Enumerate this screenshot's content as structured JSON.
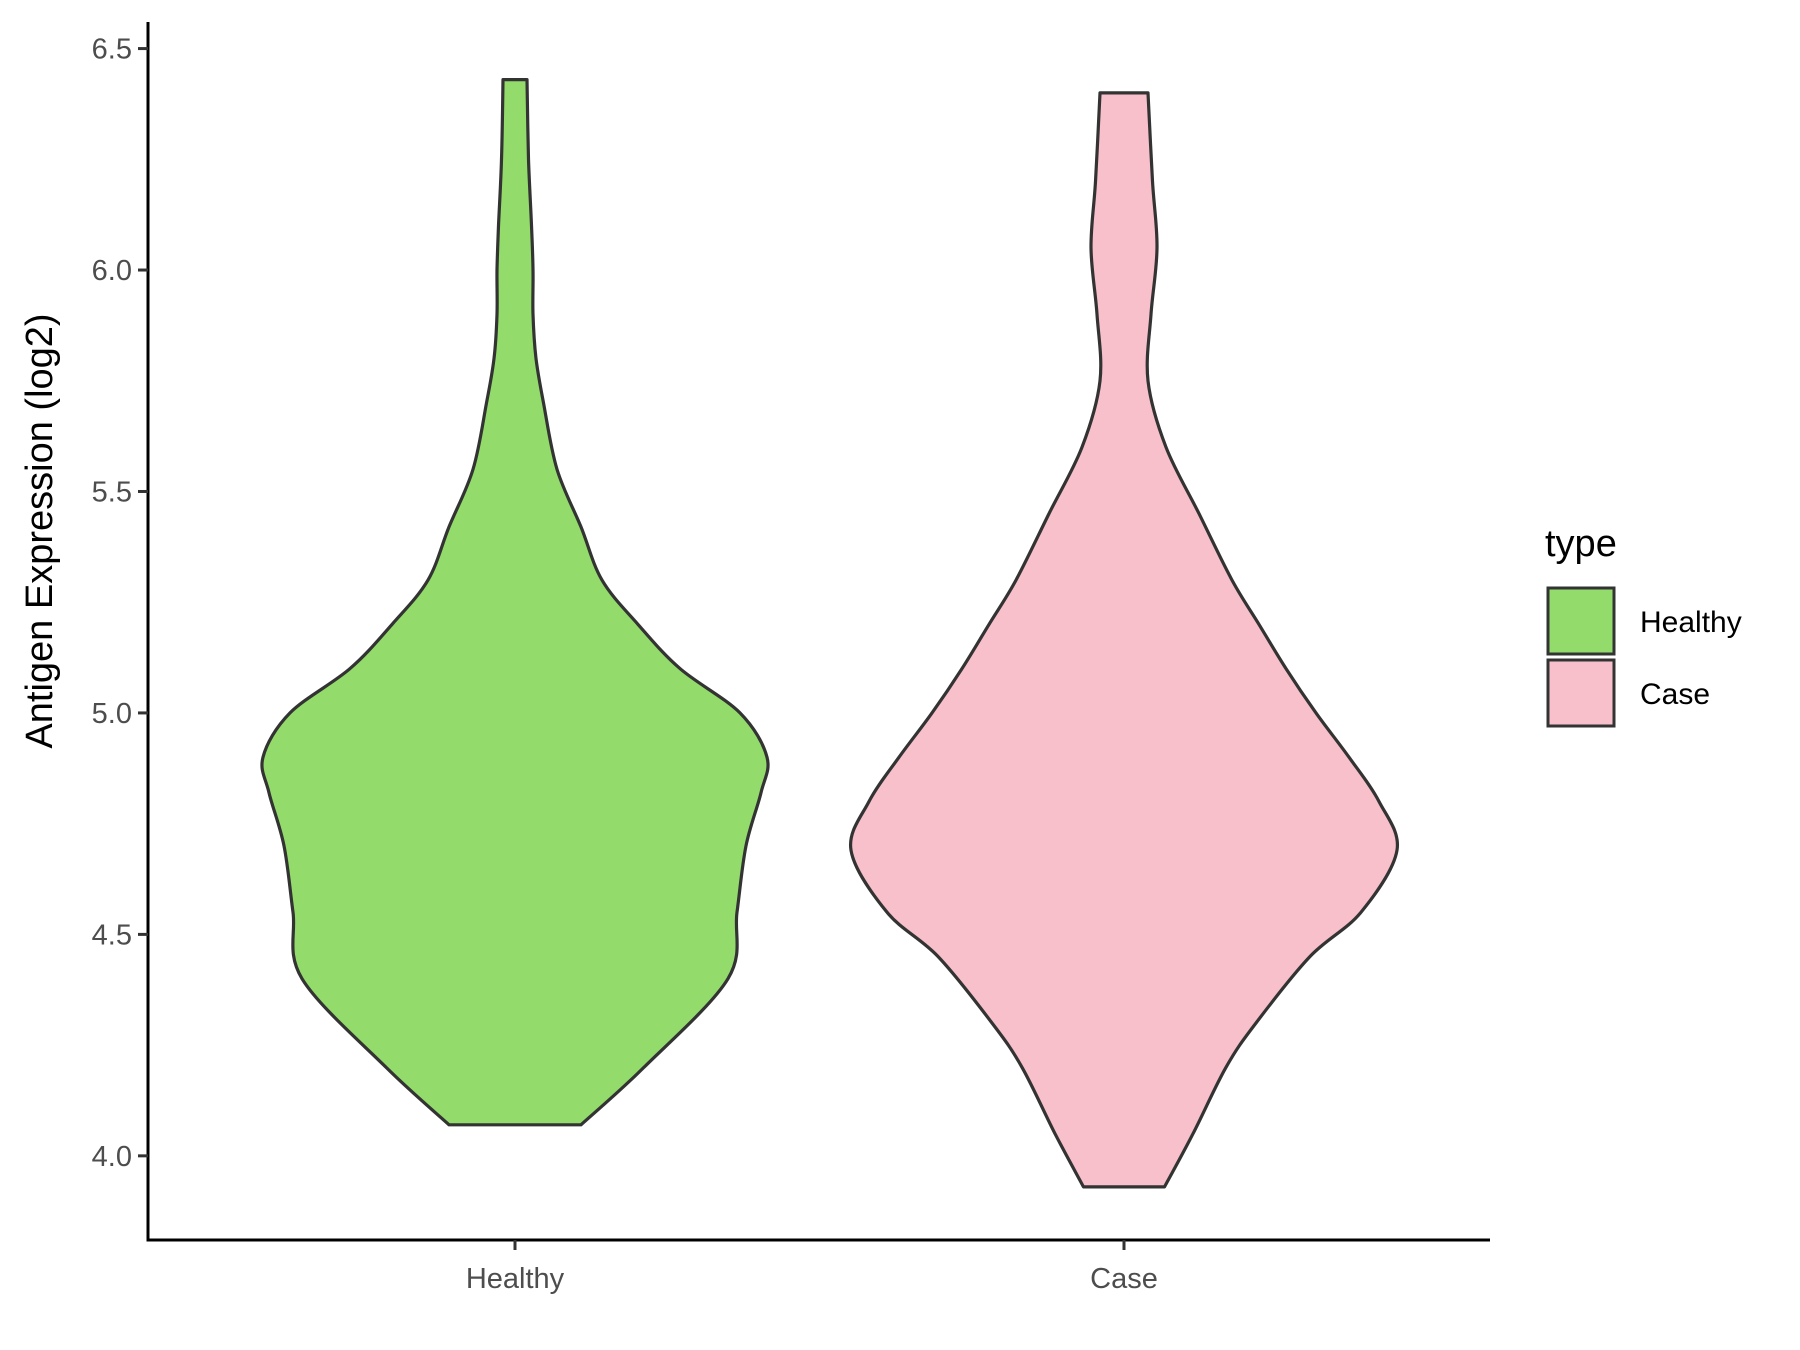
{
  "chart_data": {
    "type": "violin",
    "title": "",
    "xlabel": "",
    "ylabel": "Antigen Expression (log2)",
    "ylim": [
      3.81,
      6.56
    ],
    "yticks": [
      "4.0",
      "4.5",
      "5.0",
      "5.5",
      "6.0",
      "6.5"
    ],
    "categories": [
      "Healthy",
      "Case"
    ],
    "grid": false,
    "legend": {
      "title": "type",
      "position": "right",
      "entries": [
        {
          "label": "Healthy",
          "color": "#93DC6B"
        },
        {
          "label": "Case",
          "color": "#F7C0CB"
        }
      ]
    },
    "series": [
      {
        "name": "Healthy",
        "color": "#93DC6B",
        "min": 4.07,
        "max": 6.43,
        "max_density_at": 4.9,
        "profile": [
          [
            4.07,
            0.22
          ],
          [
            4.2,
            0.43
          ],
          [
            4.4,
            0.71
          ],
          [
            4.55,
            0.74
          ],
          [
            4.7,
            0.77
          ],
          [
            4.82,
            0.82
          ],
          [
            4.9,
            0.84
          ],
          [
            5.0,
            0.75
          ],
          [
            5.1,
            0.55
          ],
          [
            5.2,
            0.41
          ],
          [
            5.3,
            0.29
          ],
          [
            5.42,
            0.22
          ],
          [
            5.55,
            0.14
          ],
          [
            5.7,
            0.095
          ],
          [
            5.8,
            0.07
          ],
          [
            5.9,
            0.06
          ],
          [
            6.0,
            0.06
          ],
          [
            6.1,
            0.055
          ],
          [
            6.25,
            0.045
          ],
          [
            6.43,
            0.04
          ]
        ]
      },
      {
        "name": "Case",
        "color": "#F7C0CB",
        "min": 3.93,
        "max": 6.4,
        "max_density_at": 4.69,
        "profile": [
          [
            3.93,
            0.135
          ],
          [
            4.05,
            0.23
          ],
          [
            4.2,
            0.34
          ],
          [
            4.3,
            0.44
          ],
          [
            4.45,
            0.62
          ],
          [
            4.55,
            0.79
          ],
          [
            4.69,
            0.91
          ],
          [
            4.8,
            0.85
          ],
          [
            4.9,
            0.75
          ],
          [
            5.0,
            0.64
          ],
          [
            5.1,
            0.54
          ],
          [
            5.2,
            0.45
          ],
          [
            5.3,
            0.36
          ],
          [
            5.45,
            0.25
          ],
          [
            5.6,
            0.14
          ],
          [
            5.75,
            0.08
          ],
          [
            5.9,
            0.09
          ],
          [
            6.05,
            0.11
          ],
          [
            6.2,
            0.095
          ],
          [
            6.4,
            0.08
          ]
        ]
      }
    ]
  }
}
